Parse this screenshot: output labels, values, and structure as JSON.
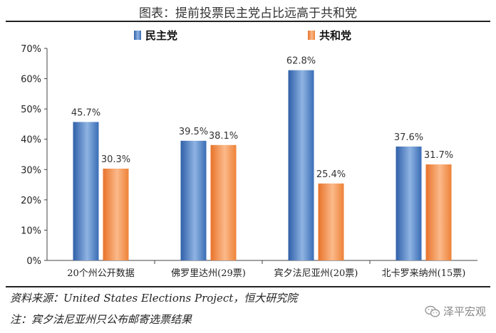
{
  "chart_data": {
    "type": "bar",
    "title": "图表：提前投票民主党占比远高于共和党",
    "categories": [
      "20个州公开数据",
      "佛罗里达州(29票)",
      "宾夕法尼亚州(20票)",
      "北卡罗来纳州(15票)"
    ],
    "series": [
      {
        "name": "民主党",
        "values": [
          45.7,
          39.5,
          62.8,
          37.6
        ],
        "labels": [
          "45.7%",
          "39.5%",
          "62.8%",
          "37.6%"
        ],
        "color": "#4a7fc1"
      },
      {
        "name": "共和党",
        "values": [
          30.3,
          38.1,
          25.4,
          31.7
        ],
        "labels": [
          "30.3%",
          "38.1%",
          "25.4%",
          "31.7%"
        ],
        "color": "#f08a3c"
      }
    ],
    "ylim": [
      0,
      70
    ],
    "yticks": [
      "0%",
      "10%",
      "20%",
      "30%",
      "40%",
      "50%",
      "60%",
      "70%"
    ],
    "legend": "top",
    "grid": false
  },
  "source": "资料来源：United States Elections Project，恒大研究院",
  "note": "注：宾夕法尼亚州只公布邮寄选票结果",
  "watermark": "泽平宏观"
}
